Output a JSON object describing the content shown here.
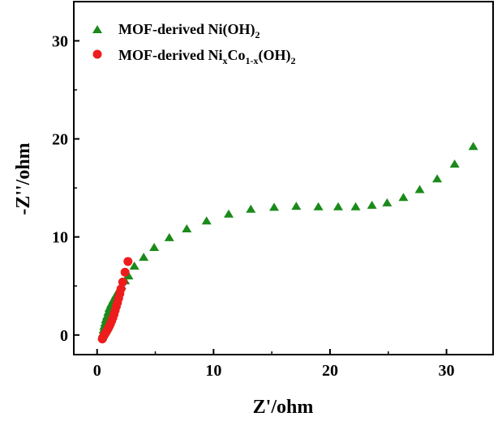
{
  "chart_data": {
    "type": "scatter",
    "xlabel": "Z'/ohm",
    "ylabel": "-Z''/ohm",
    "xlim": [
      -2,
      34
    ],
    "ylim": [
      -2,
      34
    ],
    "x_ticks": [
      0,
      10,
      20,
      30
    ],
    "y_ticks": [
      0,
      10,
      20,
      30
    ],
    "grid": false,
    "legend_position": "top-left",
    "series": [
      {
        "name": "MOF-derived Ni(OH)2",
        "name_parts": {
          "base": "MOF-derived Ni(OH)",
          "sub": "2"
        },
        "marker": "triangle",
        "color": "#1a8a1a",
        "points": [
          [
            0.45,
            -0.2
          ],
          [
            0.5,
            0.15
          ],
          [
            0.55,
            0.5
          ],
          [
            0.6,
            0.85
          ],
          [
            0.68,
            1.2
          ],
          [
            0.75,
            1.55
          ],
          [
            0.85,
            1.9
          ],
          [
            0.95,
            2.3
          ],
          [
            1.05,
            2.7
          ],
          [
            1.2,
            3.1
          ],
          [
            1.4,
            3.55
          ],
          [
            1.6,
            4.0
          ],
          [
            1.85,
            4.5
          ],
          [
            2.1,
            5.0
          ],
          [
            2.4,
            5.5
          ],
          [
            2.7,
            6.0
          ],
          [
            3.2,
            7.0
          ],
          [
            4.0,
            7.9
          ],
          [
            4.9,
            8.9
          ],
          [
            6.2,
            9.9
          ],
          [
            7.7,
            10.8
          ],
          [
            9.4,
            11.6
          ],
          [
            11.3,
            12.3
          ],
          [
            13.2,
            12.8
          ],
          [
            15.2,
            13.0
          ],
          [
            17.1,
            13.1
          ],
          [
            19.0,
            13.05
          ],
          [
            20.7,
            13.05
          ],
          [
            22.2,
            13.05
          ],
          [
            23.6,
            13.2
          ],
          [
            24.9,
            13.45
          ],
          [
            26.3,
            14.0
          ],
          [
            27.7,
            14.8
          ],
          [
            29.2,
            15.9
          ],
          [
            30.7,
            17.4
          ],
          [
            32.3,
            19.2
          ]
        ]
      },
      {
        "name": "MOF-derived NixCo1-x(OH)2",
        "name_parts": {
          "base1": "MOF-derived Ni",
          "sub1": "x",
          "base2": "Co",
          "sub2": "1-x",
          "base3": "(OH)",
          "sub3": "2"
        },
        "marker": "circle",
        "color": "#ee1c1c",
        "points": [
          [
            0.45,
            -0.4
          ],
          [
            0.55,
            -0.15
          ],
          [
            0.65,
            0.05
          ],
          [
            0.75,
            0.25
          ],
          [
            0.85,
            0.45
          ],
          [
            0.95,
            0.65
          ],
          [
            1.05,
            0.9
          ],
          [
            1.15,
            1.15
          ],
          [
            1.25,
            1.45
          ],
          [
            1.35,
            1.75
          ],
          [
            1.45,
            2.1
          ],
          [
            1.55,
            2.5
          ],
          [
            1.65,
            2.9
          ],
          [
            1.75,
            3.3
          ],
          [
            1.85,
            3.75
          ],
          [
            1.95,
            4.2
          ],
          [
            2.05,
            4.7
          ],
          [
            2.2,
            5.4
          ],
          [
            2.4,
            6.4
          ],
          [
            2.65,
            7.5
          ]
        ]
      }
    ]
  },
  "colors": {
    "series1": "#1a8a1a",
    "series2": "#ee1c1c",
    "axis": "#000000"
  }
}
